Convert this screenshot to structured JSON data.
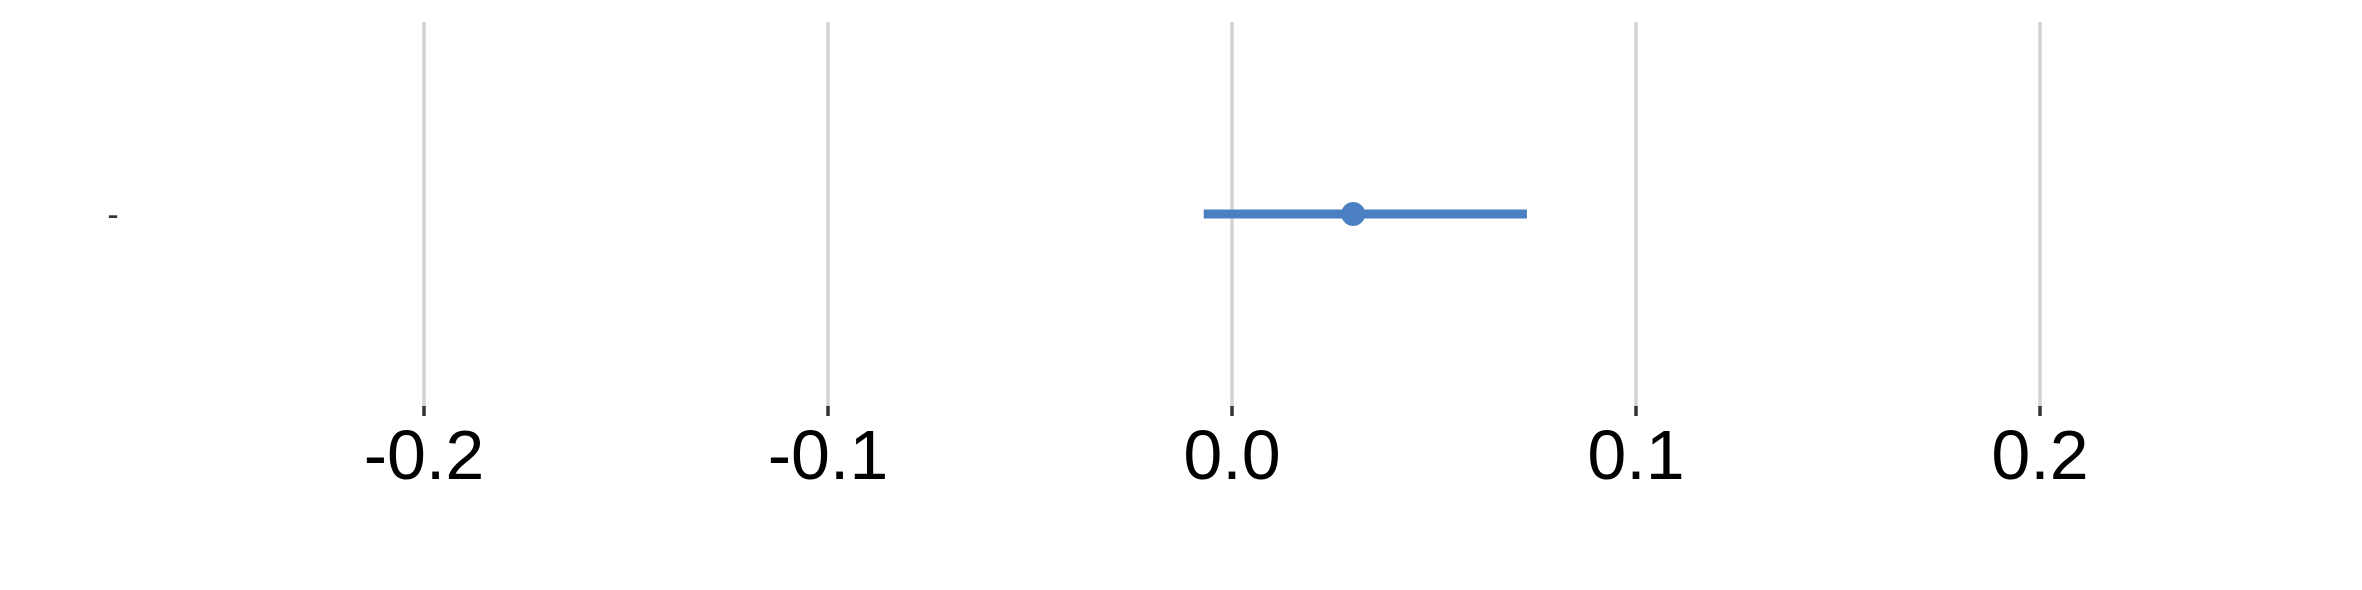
{
  "chart_data": {
    "type": "scatter",
    "title": "",
    "xlabel": "",
    "ylabel": "",
    "xlim": [
      -0.2,
      0.2
    ],
    "x_ticks": [
      -0.2,
      -0.1,
      0.0,
      0.1,
      0.2
    ],
    "x_tick_labels": [
      "-0.2",
      "-0.1",
      "0.0",
      "0.1",
      "0.2"
    ],
    "grid": "vertical",
    "legend": "none",
    "categories": [
      "-"
    ],
    "series": [
      {
        "points": [
          {
            "category": "-",
            "estimate": 0.03,
            "ci_low": -0.007,
            "ci_high": 0.073
          }
        ],
        "color": "#4a7fc1"
      }
    ]
  }
}
